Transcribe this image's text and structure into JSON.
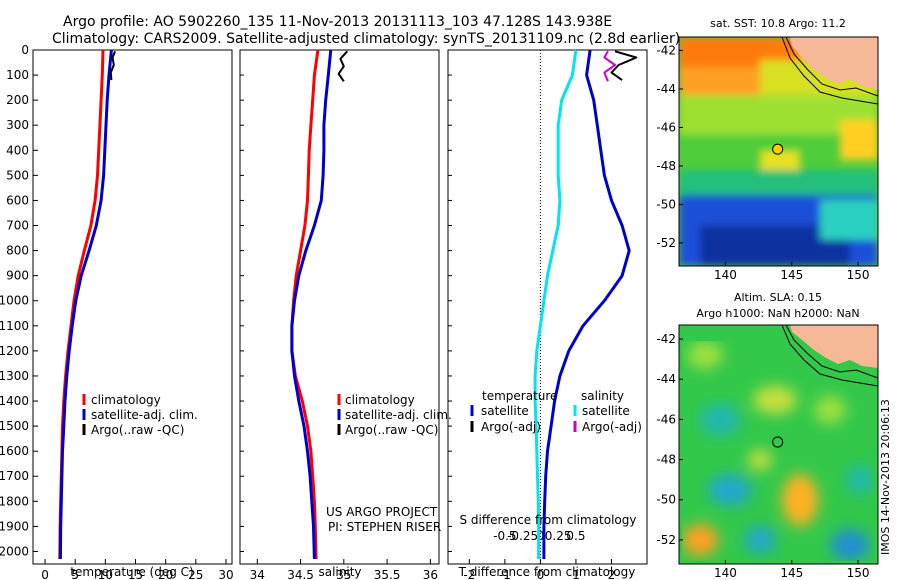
{
  "titles": {
    "line1": "Argo profile: AO 5902260_135 11-Nov-2013 20131113_103 47.128S 143.938E",
    "line2": "Climatology: CARS2009. Satellite-adjusted climatology: synTS_20131109.nc (2.8d earlier)"
  },
  "colors": {
    "climatology": "#ff0000",
    "satellite": "#0000cc",
    "argo": "#000000",
    "s_satellite": "#00e5ee",
    "s_argo": "#cc00cc",
    "land": "#f5b998"
  },
  "chart_data": [
    {
      "type": "line",
      "panel": "temperature",
      "xlabel": "temperature (deg C)",
      "xlim": [
        -2,
        31
      ],
      "ylim": [
        0,
        2050
      ],
      "xticks": [
        0,
        5,
        10,
        15,
        20,
        25,
        30
      ],
      "yticks": [
        0,
        100,
        200,
        300,
        400,
        500,
        600,
        700,
        800,
        900,
        1000,
        1100,
        1200,
        1300,
        1400,
        1500,
        1600,
        1700,
        1800,
        1900,
        2000
      ],
      "y_reversed": true,
      "legend": [
        "climatology",
        "satellite-adj. clim.",
        "Argo(..raw -QC)"
      ],
      "series": [
        {
          "name": "climatology",
          "color": "#ff0000",
          "x": [
            9.6,
            9.5,
            9.3,
            9.1,
            8.9,
            8.7,
            8.3,
            7.6,
            6.5,
            5.5,
            4.8,
            4.3,
            3.8,
            3.4,
            3.1,
            2.9,
            2.8,
            2.7,
            2.6,
            2.5,
            2.45
          ],
          "y": [
            0,
            100,
            200,
            300,
            400,
            500,
            600,
            700,
            800,
            900,
            1000,
            1100,
            1200,
            1300,
            1400,
            1500,
            1600,
            1700,
            1800,
            1900,
            2030
          ]
        },
        {
          "name": "satellite-adj. clim.",
          "color": "#0000cc",
          "x": [
            11.0,
            10.6,
            10.3,
            10.1,
            9.9,
            9.7,
            9.3,
            8.5,
            7.3,
            6.0,
            5.1,
            4.5,
            4.0,
            3.6,
            3.3,
            3.1,
            2.9,
            2.8,
            2.7,
            2.6,
            2.55
          ],
          "y": [
            0,
            100,
            200,
            300,
            400,
            500,
            600,
            700,
            800,
            900,
            1000,
            1100,
            1200,
            1300,
            1400,
            1500,
            1600,
            1700,
            1800,
            1900,
            2030
          ]
        },
        {
          "name": "Argo(..raw -QC)",
          "color": "#000000",
          "x": [
            11.6,
            11.2,
            11.4,
            10.9,
            11.0
          ],
          "y": [
            5,
            30,
            60,
            90,
            120
          ]
        }
      ]
    },
    {
      "type": "line",
      "panel": "salinity",
      "xlabel": "salinity",
      "xlim": [
        33.8,
        36.1
      ],
      "ylim": [
        0,
        2050
      ],
      "xticks": [
        34,
        34.5,
        35,
        35.5,
        36
      ],
      "y_reversed": true,
      "legend": [
        "climatology",
        "satellite-adj. clim.",
        "Argo(..raw -QC)"
      ],
      "annotation": [
        "US ARGO PROJECT",
        "PI: STEPHEN RISER"
      ],
      "series": [
        {
          "name": "climatology",
          "color": "#ff0000",
          "x": [
            34.7,
            34.66,
            34.64,
            34.62,
            34.6,
            34.59,
            34.58,
            34.55,
            34.5,
            34.45,
            34.42,
            34.4,
            34.4,
            34.44,
            34.52,
            34.58,
            34.62,
            34.64,
            34.66,
            34.67,
            34.68
          ],
          "y": [
            0,
            100,
            200,
            300,
            400,
            500,
            600,
            700,
            800,
            900,
            1000,
            1100,
            1200,
            1300,
            1400,
            1500,
            1600,
            1700,
            1800,
            1900,
            2030
          ]
        },
        {
          "name": "satellite-adj. clim.",
          "color": "#0000cc",
          "x": [
            34.85,
            34.82,
            34.79,
            34.77,
            34.77,
            34.76,
            34.74,
            34.66,
            34.56,
            34.48,
            34.43,
            34.4,
            34.4,
            34.43,
            34.48,
            34.54,
            34.58,
            34.61,
            34.63,
            34.65,
            34.66
          ],
          "y": [
            0,
            100,
            200,
            300,
            400,
            500,
            600,
            700,
            800,
            900,
            1000,
            1100,
            1200,
            1300,
            1400,
            1500,
            1600,
            1700,
            1800,
            1900,
            2030
          ]
        },
        {
          "name": "Argo(..raw -QC)",
          "color": "#000000",
          "x": [
            35.04,
            34.96,
            35.0,
            34.94,
            35.0
          ],
          "y": [
            5,
            35,
            65,
            95,
            125
          ]
        }
      ]
    },
    {
      "type": "line",
      "panel": "difference",
      "xlabel": "T difference from climatology",
      "xlabel2": "S difference from climatology",
      "xlim": [
        -2.6,
        3.0
      ],
      "ylim": [
        0,
        2050
      ],
      "xticks": [
        -2,
        -1,
        0,
        1,
        2
      ],
      "xticks_s": [
        -0.5,
        -0.25,
        0,
        0.25,
        0.5
      ],
      "xticks_s_pos": [
        -1,
        -0.5,
        0,
        0.5,
        1
      ],
      "y_reversed": true,
      "legend": {
        "temperature_head": "temperature",
        "salinity_head": "salinity",
        "t_items": [
          "satellite",
          "Argo(-adj)"
        ],
        "s_items": [
          "satellite",
          "Argo(-adj)"
        ]
      },
      "series": [
        {
          "name": "satellite",
          "color": "#0000cc",
          "x": [
            1.4,
            1.3,
            1.5,
            1.6,
            1.7,
            1.8,
            2.0,
            2.3,
            2.5,
            2.3,
            1.8,
            1.2,
            0.8,
            0.55,
            0.4,
            0.3,
            0.2,
            0.15,
            0.12,
            0.1,
            0.1
          ],
          "y": [
            0,
            100,
            200,
            300,
            400,
            500,
            600,
            700,
            800,
            900,
            1000,
            1100,
            1200,
            1300,
            1400,
            1500,
            1600,
            1700,
            1800,
            1900,
            2030
          ]
        },
        {
          "name": "satellite",
          "color": "#00e5ee",
          "x": [
            1.0,
            0.9,
            0.6,
            0.5,
            0.5,
            0.5,
            0.55,
            0.5,
            0.35,
            0.2,
            0.1,
            0.0,
            -0.1,
            -0.15,
            -0.15,
            -0.12,
            -0.1,
            -0.08,
            -0.06,
            -0.05,
            -0.05
          ],
          "y": [
            0,
            100,
            200,
            300,
            400,
            500,
            600,
            700,
            800,
            900,
            1000,
            1100,
            1200,
            1300,
            1400,
            1500,
            1600,
            1700,
            1800,
            1900,
            2030
          ]
        },
        {
          "name": "Argo(-adj)",
          "color": "#000000",
          "x": [
            2.1,
            2.7,
            2.2,
            2.0,
            2.3
          ],
          "y": [
            5,
            30,
            60,
            90,
            120
          ]
        },
        {
          "name": "Argo(-adj)",
          "color": "#cc00cc",
          "x": [
            1.9,
            1.8,
            2.1,
            1.8,
            1.9
          ],
          "y": [
            5,
            30,
            60,
            90,
            125
          ]
        }
      ]
    },
    {
      "type": "heatmap",
      "panel": "sst-map",
      "title": "sat. SST: 10.8 Argo: 11.2",
      "xlim": [
        136.5,
        151.5
      ],
      "ylim": [
        -53.2,
        -41.3
      ],
      "xticks": [
        140,
        145,
        150
      ],
      "yticks": [
        -42,
        -44,
        -46,
        -48,
        -50,
        -52
      ],
      "profile_marker": {
        "lon": 143.938,
        "lat": -47.128
      }
    },
    {
      "type": "heatmap",
      "panel": "sla-map",
      "title": "Altim. SLA: 0.15",
      "subtitle": "Argo h1000: NaN h2000: NaN",
      "xlim": [
        136.5,
        151.5
      ],
      "ylim": [
        -53.2,
        -41.3
      ],
      "xticks": [
        140,
        145,
        150
      ],
      "yticks": [
        -42,
        -44,
        -46,
        -48,
        -50,
        -52
      ],
      "profile_marker": {
        "lon": 143.938,
        "lat": -47.128
      }
    }
  ],
  "watermark": "IMOS 14-Nov-2013 20:06:13"
}
